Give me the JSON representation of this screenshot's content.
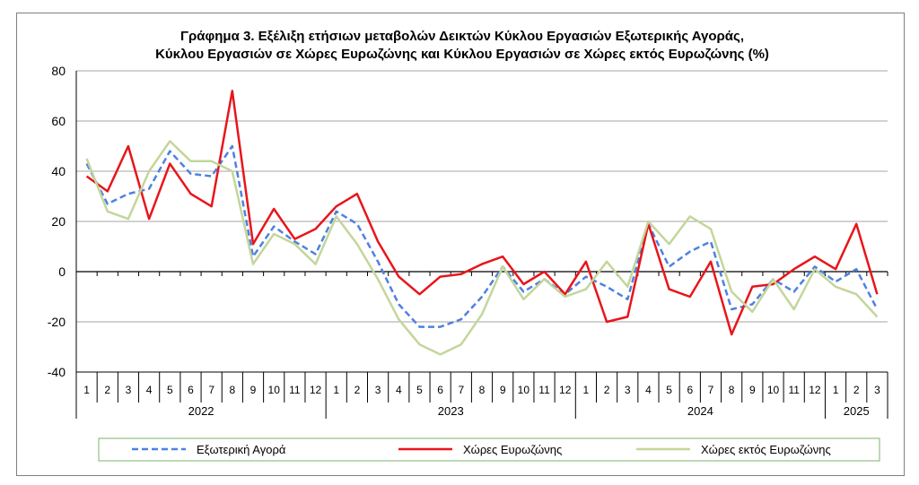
{
  "chart_data": {
    "type": "line",
    "title": [
      "Γράφημα 3. Εξέλιξη  ετήσιων μεταβολών Δεικτών Κύκλου Εργασιών Εξωτερικής Αγοράς,",
      "Κύκλου Εργασιών σε Χώρες Ευρωζώνης και Κύκλου Εργασιών σε Χώρες εκτός Ευρωζώνης (%)"
    ],
    "x_months": [
      "1",
      "2",
      "3",
      "4",
      "5",
      "6",
      "7",
      "8",
      "9",
      "10",
      "11",
      "12",
      "1",
      "2",
      "3",
      "4",
      "5",
      "6",
      "7",
      "8",
      "9",
      "10",
      "11",
      "12",
      "1",
      "2",
      "3",
      "4",
      "5",
      "6",
      "7",
      "8",
      "9",
      "10",
      "11",
      "12",
      "1",
      "2",
      "3"
    ],
    "x_years": [
      {
        "label": "2022",
        "count": 12
      },
      {
        "label": "2023",
        "count": 12
      },
      {
        "label": "2024",
        "count": 12
      },
      {
        "label": "2025",
        "count": 3
      }
    ],
    "ylim": [
      -40,
      80
    ],
    "yticks": [
      -40,
      -20,
      0,
      20,
      40,
      60,
      80
    ],
    "grid": true,
    "legend_placement": "bottom",
    "series": [
      {
        "name": "Εξωτερική Αγορά",
        "color": "#4f81e0",
        "dash": true,
        "values": [
          43,
          27,
          31,
          33,
          48,
          39,
          38,
          50,
          6,
          18,
          12,
          7,
          24,
          19,
          4,
          -13,
          -22,
          -22,
          -19,
          -10,
          2,
          -8,
          -3,
          -9,
          -2,
          -6,
          -11,
          19,
          2,
          8,
          12,
          -15,
          -13,
          -3,
          -8,
          2,
          -4,
          1,
          -15
        ]
      },
      {
        "name": "Χώρες Ευρωζώνης",
        "color": "#e8151b",
        "dash": false,
        "values": [
          38,
          32,
          50,
          21,
          43,
          31,
          26,
          72,
          11,
          25,
          13,
          17,
          26,
          31,
          12,
          -2,
          -9,
          -2,
          -1,
          3,
          6,
          -5,
          0,
          -9,
          4,
          -20,
          -18,
          19,
          -7,
          -10,
          4,
          -25,
          -6,
          -5,
          1,
          6,
          1,
          19,
          -9
        ]
      },
      {
        "name": "Χώρες εκτός Ευρωζώνης",
        "color": "#c3d69b",
        "dash": false,
        "values": [
          45,
          24,
          21,
          40,
          52,
          44,
          44,
          40,
          3,
          15,
          11,
          3,
          22,
          11,
          -3,
          -19,
          -29,
          -33,
          -29,
          -17,
          2,
          -11,
          -3,
          -10,
          -7,
          4,
          -6,
          20,
          11,
          22,
          17,
          -8,
          -16,
          -3,
          -15,
          1,
          -6,
          -9,
          -18
        ]
      }
    ]
  }
}
